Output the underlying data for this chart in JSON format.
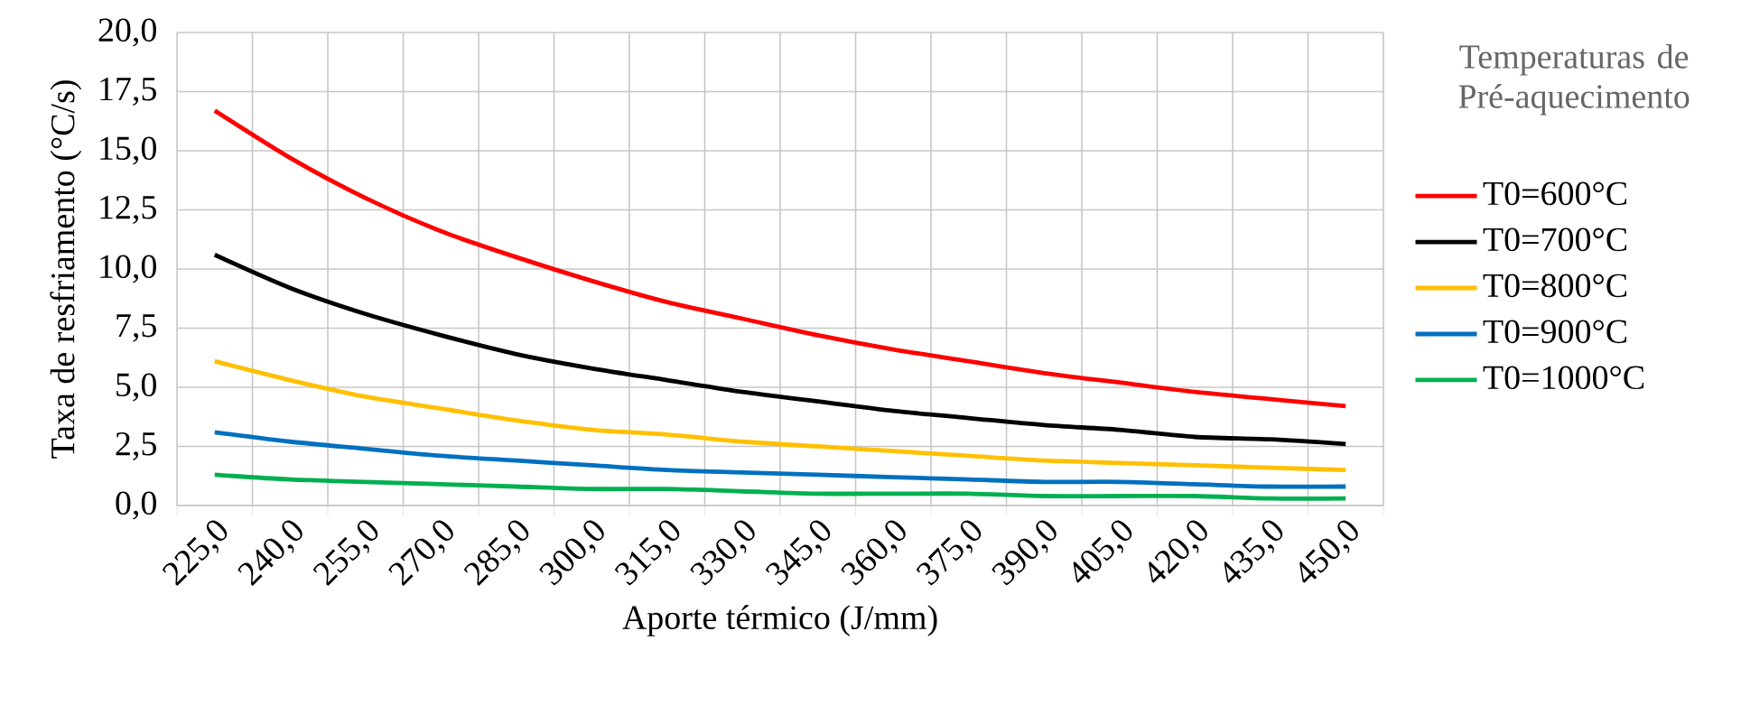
{
  "chart_data": {
    "type": "line",
    "xlabel": "Aporte térmico (J/mm)",
    "ylabel": "Taxa de resfriamento (°C/s)",
    "legend_title": "Temperaturas de Pré-aquecimento",
    "categories": [
      "225,0",
      "240,0",
      "255,0",
      "270,0",
      "285,0",
      "300,0",
      "315,0",
      "330,0",
      "345,0",
      "360,0",
      "375,0",
      "390,0",
      "405,0",
      "420,0",
      "435,0",
      "450,0"
    ],
    "series": [
      {
        "name": "T0=600°C",
        "color": "#ff0000",
        "values": [
          16.7,
          14.7,
          13.0,
          11.6,
          10.5,
          9.5,
          8.6,
          7.9,
          7.2,
          6.6,
          6.1,
          5.6,
          5.2,
          4.8,
          4.5,
          4.2
        ]
      },
      {
        "name": "T0=700°C",
        "color": "#000000",
        "values": [
          10.6,
          9.2,
          8.1,
          7.2,
          6.4,
          5.8,
          5.3,
          4.8,
          4.4,
          4.0,
          3.7,
          3.4,
          3.2,
          2.9,
          2.8,
          2.6
        ]
      },
      {
        "name": "T0=800°C",
        "color": "#ffc000",
        "values": [
          6.1,
          5.3,
          4.6,
          4.1,
          3.6,
          3.2,
          3.0,
          2.7,
          2.5,
          2.3,
          2.1,
          1.9,
          1.8,
          1.7,
          1.6,
          1.5
        ]
      },
      {
        "name": "T0=900°C",
        "color": "#0070c0",
        "values": [
          3.1,
          2.7,
          2.4,
          2.1,
          1.9,
          1.7,
          1.5,
          1.4,
          1.3,
          1.2,
          1.1,
          1.0,
          1.0,
          0.9,
          0.8,
          0.8
        ]
      },
      {
        "name": "T0=1000°C",
        "color": "#00b050",
        "values": [
          1.3,
          1.1,
          1.0,
          0.9,
          0.8,
          0.7,
          0.7,
          0.6,
          0.5,
          0.5,
          0.5,
          0.4,
          0.4,
          0.4,
          0.3,
          0.3
        ]
      }
    ],
    "ylim": [
      0,
      20
    ],
    "yticks": [
      {
        "value": 0,
        "label": "0,0"
      },
      {
        "value": 2.5,
        "label": "2,5"
      },
      {
        "value": 5,
        "label": "5,0"
      },
      {
        "value": 7.5,
        "label": "7,5"
      },
      {
        "value": 10,
        "label": "10,0"
      },
      {
        "value": 12.5,
        "label": "12,5"
      },
      {
        "value": 15,
        "label": "15,0"
      },
      {
        "value": 17.5,
        "label": "17,5"
      },
      {
        "value": 20,
        "label": "20,0"
      }
    ],
    "grid": true,
    "legend": "right",
    "marker": "none",
    "line_style": "solid"
  }
}
